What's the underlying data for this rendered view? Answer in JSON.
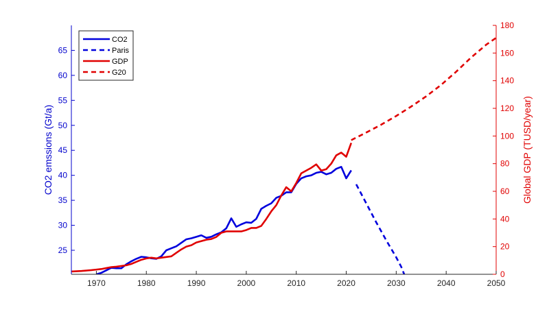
{
  "chart_data": {
    "type": "line",
    "title": "",
    "xlabel": "",
    "ylabel_left": "CO2 emssions (Gt/a)",
    "ylabel_right": "Global GDP (TUSD/year)",
    "xlim": [
      1965,
      2050
    ],
    "ylim_left": [
      20.2,
      70
    ],
    "ylim_right": [
      0,
      180
    ],
    "xticks": [
      1970,
      1980,
      1990,
      2000,
      2010,
      2020,
      2030,
      2040,
      2050
    ],
    "yticks_left": [
      25,
      30,
      35,
      40,
      45,
      50,
      55,
      60,
      65
    ],
    "yticks_right": [
      0,
      20,
      40,
      60,
      80,
      100,
      120,
      140,
      160,
      180
    ],
    "colors": {
      "left_axis": "#0000cc",
      "right_axis": "#e00000",
      "co2": "#0000dd",
      "gdp": "#e00000"
    },
    "legend": {
      "placement": "top-left",
      "entries": [
        "CO2",
        "Paris",
        "GDP",
        "G20"
      ]
    },
    "series": [
      {
        "name": "CO2",
        "axis": "left",
        "style": "solid",
        "x": [
          1970,
          1971,
          1972,
          1973,
          1974,
          1975,
          1976,
          1977,
          1978,
          1979,
          1980,
          1981,
          1982,
          1983,
          1984,
          1985,
          1986,
          1987,
          1988,
          1989,
          1990,
          1991,
          1992,
          1993,
          1994,
          1995,
          1996,
          1997,
          1998,
          1999,
          2000,
          2001,
          2002,
          2003,
          2004,
          2005,
          2006,
          2007,
          2008,
          2009,
          2010,
          2011,
          2012,
          2013,
          2014,
          2015,
          2016,
          2017,
          2018,
          2019,
          2020,
          2021
        ],
        "y": [
          20.2,
          20.5,
          21.0,
          21.5,
          21.4,
          21.4,
          22.2,
          22.8,
          23.3,
          23.7,
          23.6,
          23.4,
          23.3,
          23.8,
          25.0,
          25.4,
          25.8,
          26.5,
          27.2,
          27.4,
          27.7,
          28.0,
          27.5,
          27.7,
          28.2,
          28.6,
          29.4,
          31.4,
          29.7,
          30.2,
          30.6,
          30.5,
          31.3,
          33.3,
          33.9,
          34.4,
          35.5,
          35.9,
          36.6,
          36.6,
          38.3,
          39.4,
          39.8,
          40.0,
          40.5,
          40.7,
          40.2,
          40.5,
          41.3,
          41.7,
          39.4,
          41.0
        ]
      },
      {
        "name": "Paris",
        "axis": "left",
        "style": "dashed",
        "x": [
          2022,
          2023,
          2024,
          2025,
          2026,
          2027,
          2028,
          2029,
          2030,
          2031,
          2031.6
        ],
        "y": [
          38.2,
          36.3,
          34.4,
          32.5,
          30.6,
          28.8,
          27.0,
          25.3,
          23.6,
          21.7,
          20.2
        ]
      },
      {
        "name": "GDP",
        "axis": "right",
        "style": "solid",
        "x": [
          1965,
          1966,
          1967,
          1968,
          1969,
          1970,
          1971,
          1972,
          1973,
          1974,
          1975,
          1976,
          1977,
          1978,
          1979,
          1980,
          1981,
          1982,
          1983,
          1984,
          1985,
          1986,
          1987,
          1988,
          1989,
          1990,
          1991,
          1992,
          1993,
          1994,
          1995,
          1996,
          1997,
          1998,
          1999,
          2000,
          2001,
          2002,
          2003,
          2004,
          2005,
          2006,
          2007,
          2008,
          2009,
          2010,
          2011,
          2012,
          2013,
          2014,
          2015,
          2016,
          2017,
          2018,
          2019,
          2020,
          2021
        ],
        "y": [
          2,
          2.2,
          2.4,
          2.7,
          3,
          3.4,
          3.8,
          4.5,
          5.2,
          5.5,
          6,
          6.5,
          7.5,
          9,
          10.5,
          11.5,
          12,
          11.5,
          12,
          12.5,
          13,
          15.5,
          18,
          20,
          21,
          23,
          24,
          25,
          25.5,
          27,
          30,
          31,
          31,
          31,
          31,
          32,
          33.5,
          33.5,
          35,
          40,
          45.5,
          50,
          57,
          63,
          60,
          66,
          73,
          75,
          77,
          79.5,
          75,
          76,
          80,
          86,
          88,
          85,
          95
        ]
      },
      {
        "name": "G20",
        "axis": "right",
        "style": "dashed",
        "x": [
          2021,
          2024,
          2027,
          2030,
          2033,
          2036,
          2039,
          2042,
          2045,
          2048,
          2050
        ],
        "y": [
          97,
          102.5,
          108.2,
          114.5,
          121.3,
          128.7,
          137,
          146.5,
          156.8,
          166,
          171
        ]
      }
    ]
  }
}
